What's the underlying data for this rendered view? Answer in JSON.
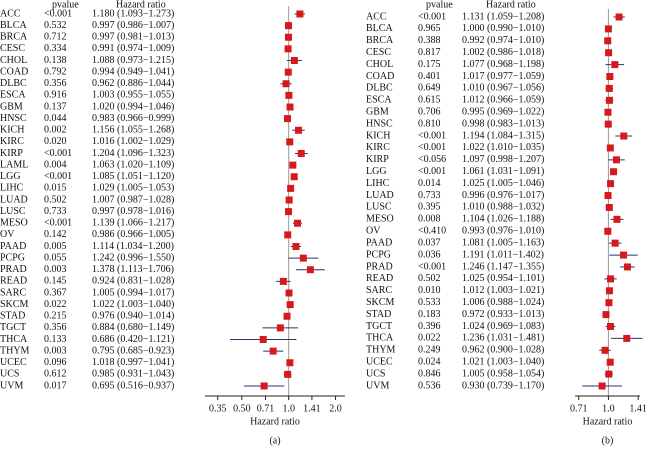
{
  "chart_data": [
    {
      "type": "forest",
      "label": "(a)",
      "pvalue_header": "pvalue",
      "hr_header": "Hazard ratio",
      "xlabel": "Hazard ratio",
      "log_scale": true,
      "xlim": [
        0.29,
        2.3
      ],
      "xticks": [
        0.35,
        {
          "value": 0.5,
          "label": "0.50"
        },
        0.71,
        {
          "value": 1,
          "label": "1.0"
        },
        1.41,
        {
          "value": 2,
          "label": "2.0"
        }
      ],
      "reference_line": 1,
      "color": "#d7191c",
      "ci_color": "#23366e",
      "categories": [
        "ACC",
        "BLCA",
        "BRCA",
        "CESC",
        "CHOL",
        "COAD",
        "DLBC",
        "ESCA",
        "GBM",
        "HNSC",
        "KICH",
        "KIRC",
        "KIRP",
        "LAML",
        "LGG",
        "LIHC",
        "LUAD",
        "LUSC",
        "MESO",
        "OV",
        "PAAD",
        "PCPG",
        "PRAD",
        "READ",
        "SARC",
        "SKCM",
        "STAD",
        "TGCT",
        "THCA",
        "THYM",
        "UCEC",
        "UCS",
        "UVM"
      ],
      "pvalues": [
        "<0.001",
        "0.532",
        "0.712",
        "0.334",
        "0.138",
        "0.792",
        "0.356",
        "0.916",
        "0.137",
        "0.044",
        "0.002",
        "0.020",
        "<0.001",
        "0.004",
        "<0.001",
        "0.015",
        "0.502",
        "0.733",
        "<0.001",
        "0.142",
        "0.005",
        "0.055",
        "0.003",
        "0.145",
        "0.367",
        "0.022",
        "0.215",
        "0.356",
        "0.133",
        "0.003",
        "0.096",
        "0.612",
        "0.017"
      ],
      "value_labels": [
        "1.180 (1.093−1.273)",
        "0.997 (0.986−1.007)",
        "0.997 (0.981−1.013)",
        "0.991 (0.974−1.009)",
        "1.088 (0.973−1.215)",
        "0.994 (0.949−1.041)",
        "0.962 (0.886−1.044)",
        "1.003 (0.955−1.055)",
        "1.020 (0.994−1.046)",
        "0.983 (0.966−0.999)",
        "1.156 (1.055−1.268)",
        "1.016 (1.002−1.029)",
        "1.204 (1.096−1.323)",
        "1.063 (1.020−1.109)",
        "1.085 (1.051−1.120)",
        "1.029 (1.005−1.053)",
        "1.007 (0.987−1.028)",
        "0.997 (0.978−1.016)",
        "1.139 (1.066−1.217)",
        "0.986 (0.966−1.005)",
        "1.114 (1.034−1.200)",
        "1.242 (0.996−1.550)",
        "1.378 (1.113−1.706)",
        "0.924 (0.831−1.028)",
        "1.005 (0.994−1.017)",
        "1.022 (1.003−1.040)",
        "0.976 (0.940−1.014)",
        "0.884 (0.680−1.149)",
        "0.686 (0.420−1.121)",
        "0.795 (0.685−0.923)",
        "1.018 (0.997−1.041)",
        "0.985 (0.931−1.043)",
        "0.695 (0.516−0.937)"
      ],
      "values": [
        1.18,
        0.997,
        0.997,
        0.991,
        1.088,
        0.994,
        0.962,
        1.003,
        1.02,
        0.983,
        1.156,
        1.016,
        1.204,
        1.063,
        1.085,
        1.029,
        1.007,
        0.997,
        1.139,
        0.986,
        1.114,
        1.242,
        1.378,
        0.924,
        1.005,
        1.022,
        0.976,
        0.884,
        0.686,
        0.795,
        1.018,
        0.985,
        0.695
      ],
      "lower": [
        1.093,
        0.986,
        0.981,
        0.974,
        0.973,
        0.949,
        0.886,
        0.955,
        0.994,
        0.966,
        1.055,
        1.002,
        1.096,
        1.02,
        1.051,
        1.005,
        0.987,
        0.978,
        1.066,
        0.966,
        1.034,
        0.996,
        1.113,
        0.831,
        0.994,
        1.003,
        0.94,
        0.68,
        0.42,
        0.685,
        0.997,
        0.931,
        0.516
      ],
      "upper": [
        1.273,
        1.007,
        1.013,
        1.009,
        1.215,
        1.041,
        1.044,
        1.055,
        1.046,
        0.999,
        1.268,
        1.029,
        1.323,
        1.109,
        1.12,
        1.053,
        1.028,
        1.016,
        1.217,
        1.005,
        1.2,
        1.55,
        1.706,
        1.028,
        1.017,
        1.04,
        1.014,
        1.149,
        1.121,
        0.923,
        1.041,
        1.043,
        0.937
      ]
    },
    {
      "type": "forest",
      "label": "(b)",
      "pvalue_header": "pvalue",
      "hr_header": "Hazard ratio",
      "xlabel": "Hazard ratio",
      "log_scale": true,
      "xlim": [
        0.68,
        1.44
      ],
      "xticks": [
        0.71,
        {
          "value": 1,
          "label": "1.0"
        },
        1.41
      ],
      "reference_line": 1,
      "color": "#d7191c",
      "ci_color": "#23366e",
      "categories": [
        "ACC",
        "BLCA",
        "BRCA",
        "CESC",
        "CHOL",
        "COAD",
        "DLBC",
        "ESCA",
        "GBM",
        "HNSC",
        "KICH",
        "KIRC",
        "KIRP",
        "LGG",
        "LIHC",
        "LUAD",
        "LUSC",
        "MESO",
        "OV",
        "PAAD",
        "PCPG",
        "PRAD",
        "READ",
        "SARC",
        "SKCM",
        "STAD",
        "TGCT",
        "THCA",
        "THYM",
        "UCEC",
        "UCS",
        "UVM"
      ],
      "pvalues": [
        "<0.001",
        "0.965",
        "0.388",
        "0.817",
        "0.175",
        "0.401",
        "0.649",
        "0.615",
        "0.706",
        "0.810",
        "<0.001",
        "<0.001",
        "<0.056",
        "<0.001",
        "0.014",
        "0.733",
        "0.395",
        "0.008",
        "<0.410",
        "0.037",
        "0.036",
        "<0.001",
        "0.502",
        "0.010",
        "0.533",
        "0.183",
        "0.396",
        "0.022",
        "0.249",
        "0.024",
        "0.846",
        "0.536"
      ],
      "value_labels": [
        "1.131 (1.059−1.208)",
        "1.000 (0.990−1.010)",
        "0.992 (0.974−1.010)",
        "1.002 (0.986−1.018)",
        "1.077 (0.968−1.198)",
        "1.017 (0.977−1.059)",
        "1.010 (0.967−1.056)",
        "1.012 (0.966−1.059)",
        "0.995 (0.969−1.022)",
        "0.998 (0.983−1.013)",
        "1.194 (1.084−1.315)",
        "1.022 (1.010−1.035)",
        "1.097 (0.998−1.207)",
        "1.061 (1.031−1.091)",
        "1.025 (1.005−1.046)",
        "0.996 (0.976−1.017)",
        "1.010 (0.988−1.032)",
        "1.104 (1.026−1.188)",
        "0.993 (0.976−1.010)",
        "1.081 (1.005−1.163)",
        "1.191 (1.011−1.402)",
        "1.246 (1.147−1.355)",
        "1.025 (0.954−1.101)",
        "1.012 (1.003−1.021)",
        "1.006 (0.988−1.024)",
        "0.972 (0.933−1.013)",
        "1.024 (0.969−1.083)",
        "1.236 (1.031−1.481)",
        "0.962 (0.900−1.028)",
        "1.021 (1.003−1.040)",
        "1.005 (0.958−1.054)",
        "0.930 (0.739−1.170)"
      ],
      "values": [
        1.131,
        1.0,
        0.992,
        1.002,
        1.077,
        1.017,
        1.01,
        1.012,
        0.995,
        0.998,
        1.194,
        1.022,
        1.097,
        1.061,
        1.025,
        0.996,
        1.01,
        1.104,
        0.993,
        1.081,
        1.191,
        1.246,
        1.025,
        1.012,
        1.006,
        0.972,
        1.024,
        1.236,
        0.962,
        1.021,
        1.005,
        0.93
      ],
      "lower": [
        1.059,
        0.99,
        0.974,
        0.986,
        0.968,
        0.977,
        0.967,
        0.966,
        0.969,
        0.983,
        1.084,
        1.01,
        0.998,
        1.031,
        1.005,
        0.976,
        0.988,
        1.026,
        0.976,
        1.005,
        1.011,
        1.147,
        0.954,
        1.003,
        0.988,
        0.933,
        0.969,
        1.031,
        0.9,
        1.003,
        0.958,
        0.739
      ],
      "upper": [
        1.208,
        1.01,
        1.01,
        1.018,
        1.198,
        1.059,
        1.056,
        1.059,
        1.022,
        1.013,
        1.315,
        1.035,
        1.207,
        1.091,
        1.046,
        1.017,
        1.032,
        1.188,
        1.01,
        1.163,
        1.402,
        1.355,
        1.101,
        1.021,
        1.024,
        1.013,
        1.083,
        1.481,
        1.028,
        1.04,
        1.054,
        1.17
      ]
    }
  ]
}
